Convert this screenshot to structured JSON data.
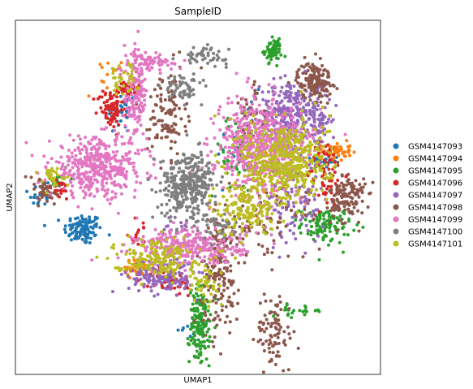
{
  "chart_data": {
    "type": "scatter",
    "title": "SampleID",
    "xlabel": "UMAP1",
    "ylabel": "UMAP2",
    "xlim": [
      0,
      100
    ],
    "ylim": [
      0,
      100
    ],
    "grid": false,
    "ticks": false,
    "legend_placement": "right",
    "series": [
      {
        "name": "GSM4147093",
        "color": "#1f77b4",
        "clusters": [
          {
            "x": 18.5,
            "y": 41,
            "sx": 2.6,
            "sy": 2.2,
            "n": 110
          },
          {
            "x": 29,
            "y": 74,
            "sx": 2.2,
            "sy": 3.0,
            "n": 35
          },
          {
            "x": 7,
            "y": 51,
            "sx": 1.8,
            "sy": 2.2,
            "n": 20
          },
          {
            "x": 85,
            "y": 60,
            "sx": 1.8,
            "sy": 1.0,
            "n": 30
          },
          {
            "x": 63,
            "y": 66,
            "sx": 4.0,
            "sy": 6.0,
            "n": 30
          },
          {
            "x": 48,
            "y": 14,
            "sx": 3,
            "sy": 3,
            "n": 10
          }
        ]
      },
      {
        "name": "GSM4147094",
        "color": "#ff7f0e",
        "clusters": [
          {
            "x": 88,
            "y": 63,
            "sx": 2.0,
            "sy": 1.3,
            "n": 50
          },
          {
            "x": 33,
            "y": 30,
            "sx": 2.2,
            "sy": 1.2,
            "n": 45
          },
          {
            "x": 72,
            "y": 56,
            "sx": 5,
            "sy": 6,
            "n": 30
          },
          {
            "x": 25,
            "y": 84,
            "sx": 3,
            "sy": 3,
            "n": 12
          }
        ]
      },
      {
        "name": "GSM4147095",
        "color": "#2ca02c",
        "clusters": [
          {
            "x": 70.5,
            "y": 91.5,
            "sx": 1.2,
            "sy": 1.5,
            "n": 70
          },
          {
            "x": 50.5,
            "y": 14,
            "sx": 1.4,
            "sy": 5.5,
            "n": 160
          },
          {
            "x": 85,
            "y": 42,
            "sx": 3.5,
            "sy": 2.5,
            "n": 110
          },
          {
            "x": 60,
            "y": 62,
            "sx": 3.5,
            "sy": 5.5,
            "n": 40
          },
          {
            "x": 78,
            "y": 18,
            "sx": 3.5,
            "sy": 0.8,
            "n": 25
          },
          {
            "x": 12,
            "y": 55,
            "sx": 2,
            "sy": 1.5,
            "n": 10
          }
        ]
      },
      {
        "name": "GSM4147096",
        "color": "#d62728",
        "clusters": [
          {
            "x": 26,
            "y": 75,
            "sx": 1.8,
            "sy": 2.8,
            "n": 80
          },
          {
            "x": 31,
            "y": 81,
            "sx": 1.3,
            "sy": 1.3,
            "n": 40
          },
          {
            "x": 85,
            "y": 57,
            "sx": 2.5,
            "sy": 5,
            "n": 70
          },
          {
            "x": 43,
            "y": 26,
            "sx": 3,
            "sy": 2,
            "n": 50
          },
          {
            "x": 12,
            "y": 52,
            "sx": 1.8,
            "sy": 1.5,
            "n": 25
          },
          {
            "x": 34,
            "y": 40,
            "sx": 2,
            "sy": 2,
            "n": 15
          }
        ]
      },
      {
        "name": "GSM4147097",
        "color": "#9467bd",
        "clusters": [
          {
            "x": 75,
            "y": 74,
            "sx": 4.0,
            "sy": 4.5,
            "n": 260
          },
          {
            "x": 83,
            "y": 72,
            "sx": 1.8,
            "sy": 4,
            "n": 70
          },
          {
            "x": 40,
            "y": 28,
            "sx": 4.5,
            "sy": 2.5,
            "n": 170
          },
          {
            "x": 77,
            "y": 49,
            "sx": 4,
            "sy": 6,
            "n": 110
          },
          {
            "x": 43,
            "y": 41,
            "sx": 2,
            "sy": 2,
            "n": 20
          }
        ]
      },
      {
        "name": "GSM4147098",
        "color": "#8c564b",
        "clusters": [
          {
            "x": 82,
            "y": 83,
            "sx": 2.4,
            "sy": 2.6,
            "n": 150
          },
          {
            "x": 91,
            "y": 50,
            "sx": 2.4,
            "sy": 3.6,
            "n": 140
          },
          {
            "x": 56,
            "y": 29,
            "sx": 2.6,
            "sy": 8,
            "n": 170
          },
          {
            "x": 71,
            "y": 12,
            "sx": 2.5,
            "sy": 5.5,
            "n": 90
          },
          {
            "x": 41.5,
            "y": 73.5,
            "sx": 2.6,
            "sy": 6,
            "n": 110
          },
          {
            "x": 8,
            "y": 52,
            "sx": 2.4,
            "sy": 2.4,
            "n": 50
          },
          {
            "x": 68,
            "y": 42,
            "sx": 6,
            "sy": 5,
            "n": 80
          },
          {
            "x": 64,
            "y": 72,
            "sx": 2.5,
            "sy": 5,
            "n": 40
          }
        ]
      },
      {
        "name": "GSM4147099",
        "color": "#e377c2",
        "clusters": [
          {
            "x": 22.5,
            "y": 58.5,
            "sx": 6.5,
            "sy": 4.2,
            "n": 420
          },
          {
            "x": 33,
            "y": 79,
            "sx": 1.6,
            "sy": 6,
            "n": 160
          },
          {
            "x": 65,
            "y": 64,
            "sx": 5,
            "sy": 7,
            "n": 460
          },
          {
            "x": 48,
            "y": 36,
            "sx": 7.5,
            "sy": 2.5,
            "n": 300
          },
          {
            "x": 37.5,
            "y": 88,
            "sx": 3,
            "sy": 1.2,
            "n": 60
          },
          {
            "x": 74,
            "y": 66,
            "sx": 5,
            "sy": 5,
            "n": 150
          }
        ]
      },
      {
        "name": "GSM4147100",
        "color": "#7f7f7f",
        "clusters": [
          {
            "x": 47.5,
            "y": 53.5,
            "sx": 3.8,
            "sy": 4.6,
            "n": 340
          },
          {
            "x": 52,
            "y": 90,
            "sx": 3,
            "sy": 1.2,
            "n": 50
          },
          {
            "x": 46,
            "y": 81,
            "sx": 2.5,
            "sy": 1.8,
            "n": 60
          },
          {
            "x": 55,
            "y": 42,
            "sx": 3,
            "sy": 2,
            "n": 40
          }
        ]
      },
      {
        "name": "GSM4147101",
        "color": "#bcbd22",
        "clusters": [
          {
            "x": 74,
            "y": 60,
            "sx": 6,
            "sy": 6,
            "n": 470
          },
          {
            "x": 63,
            "y": 47,
            "sx": 4,
            "sy": 4,
            "n": 160
          },
          {
            "x": 39,
            "y": 33,
            "sx": 6,
            "sy": 2.5,
            "n": 180
          },
          {
            "x": 29,
            "y": 84,
            "sx": 2,
            "sy": 2.5,
            "n": 40
          },
          {
            "x": 10,
            "y": 56,
            "sx": 2,
            "sy": 1.5,
            "n": 30
          },
          {
            "x": 52,
            "y": 25,
            "sx": 2.5,
            "sy": 3,
            "n": 40
          }
        ]
      }
    ]
  }
}
